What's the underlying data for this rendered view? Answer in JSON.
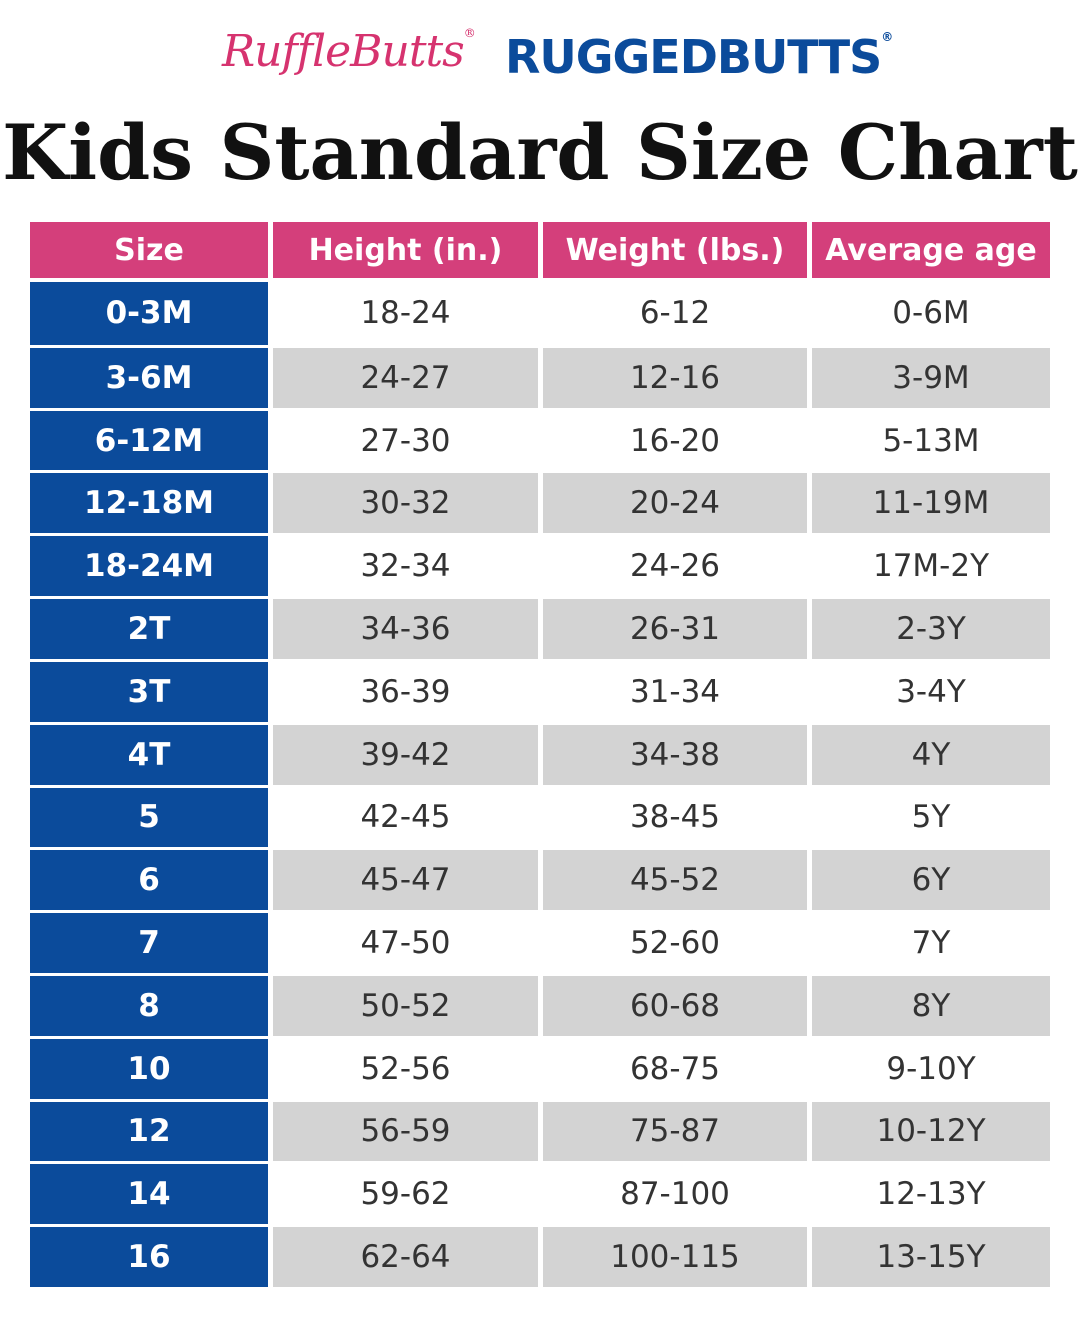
{
  "header": {
    "brands": [
      {
        "name": "RuffleButts",
        "mark": "®"
      },
      {
        "name": "RUGGEDBUTTS",
        "mark": "®"
      }
    ],
    "title": "Kids Standard Size Chart"
  },
  "table": {
    "columns": [
      "Size",
      "Height (in.)",
      "Weight (lbs.)",
      "Average age"
    ],
    "rows": [
      [
        "0-3M",
        "18-24",
        "6-12",
        "0-6M"
      ],
      [
        "3-6M",
        "24-27",
        "12-16",
        "3-9M"
      ],
      [
        "6-12M",
        "27-30",
        "16-20",
        "5-13M"
      ],
      [
        "12-18M",
        "30-32",
        "20-24",
        "11-19M"
      ],
      [
        "18-24M",
        "32-34",
        "24-26",
        "17M-2Y"
      ],
      [
        "2T",
        "34-36",
        "26-31",
        "2-3Y"
      ],
      [
        "3T",
        "36-39",
        "31-34",
        "3-4Y"
      ],
      [
        "4T",
        "39-42",
        "34-38",
        "4Y"
      ],
      [
        "5",
        "42-45",
        "38-45",
        "5Y"
      ],
      [
        "6",
        "45-47",
        "45-52",
        "6Y"
      ],
      [
        "7",
        "47-50",
        "52-60",
        "7Y"
      ],
      [
        "8",
        "50-52",
        "60-68",
        "8Y"
      ],
      [
        "10",
        "52-56",
        "68-75",
        "9-10Y"
      ],
      [
        "12",
        "56-59",
        "75-87",
        "10-12Y"
      ],
      [
        "14",
        "59-62",
        "87-100",
        "12-13Y"
      ],
      [
        "16",
        "62-64",
        "100-115",
        "13-15Y"
      ]
    ]
  }
}
